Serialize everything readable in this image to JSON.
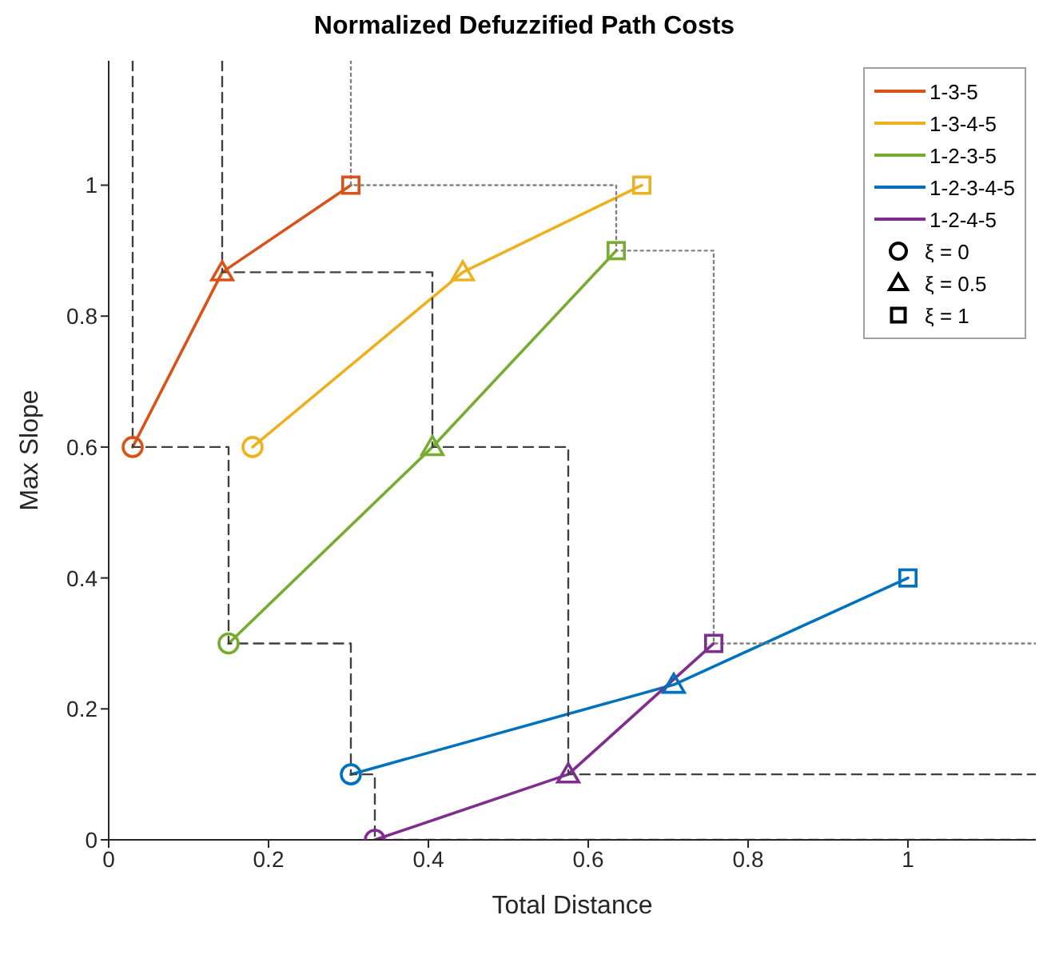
{
  "chart_data": {
    "type": "line",
    "title": "Normalized Defuzzified Path Costs",
    "xlabel": "Total Distance",
    "ylabel": "Max Slope",
    "xlim": [
      0,
      1.16
    ],
    "ylim": [
      0,
      1.19
    ],
    "xticks": [
      0,
      0.2,
      0.4,
      0.6,
      0.8,
      1
    ],
    "yticks": [
      0,
      0.2,
      0.4,
      0.6,
      0.8,
      1
    ],
    "grid": false,
    "legend": "top right",
    "marker": "none",
    "annotations": [
      "ξ = 0",
      "ξ = 0.5",
      "ξ = 1"
    ],
    "series": [
      {
        "name": "1-3-5",
        "type": "line",
        "color": "#d95319",
        "x": [
          0.03,
          0.142,
          0.303
        ],
        "values": [
          0.6,
          0.867,
          1.0
        ]
      },
      {
        "name": "1-3-4-5",
        "type": "line",
        "color": "#edb120",
        "x": [
          0.18,
          0.443,
          0.667
        ],
        "values": [
          0.6,
          0.867,
          1.0
        ]
      },
      {
        "name": "1-2-3-5",
        "type": "line",
        "color": "#77ac30",
        "x": [
          0.15,
          0.405,
          0.635
        ],
        "values": [
          0.3,
          0.6,
          0.9
        ]
      },
      {
        "name": "1-2-3-4-5",
        "type": "line",
        "color": "#0072bd",
        "x": [
          0.303,
          0.707,
          1.0
        ],
        "values": [
          0.1,
          0.237,
          0.4
        ]
      },
      {
        "name": "1-2-4-5",
        "type": "line",
        "color": "#7e2f8e",
        "x": [
          0.333,
          0.575,
          0.757
        ],
        "values": [
          0.0,
          0.1,
          0.3
        ]
      },
      {
        "type": "scatter",
        "marker": "circle",
        "x": [
          0.03,
          0.18,
          0.15,
          0.303,
          0.333
        ],
        "values": [
          0.6,
          0.6,
          0.3,
          0.1,
          0.0
        ],
        "colors": [
          "#d95319",
          "#edb120",
          "#77ac30",
          "#0072bd",
          "#7e2f8e"
        ]
      },
      {
        "type": "scatter",
        "marker": "triangle",
        "x": [
          0.142,
          0.443,
          0.405,
          0.707,
          0.575
        ],
        "values": [
          0.867,
          0.867,
          0.6,
          0.237,
          0.1
        ],
        "colors": [
          "#d95319",
          "#edb120",
          "#77ac30",
          "#0072bd",
          "#7e2f8e"
        ]
      },
      {
        "type": "scatter",
        "marker": "square",
        "x": [
          0.303,
          0.667,
          0.635,
          1.0,
          0.757
        ],
        "values": [
          1.0,
          1.0,
          0.9,
          0.4,
          0.3
        ],
        "colors": [
          "#d95319",
          "#edb120",
          "#77ac30",
          "#0072bd",
          "#7e2f8e"
        ]
      },
      {
        "type": "line",
        "color": "#404040",
        "line_style": "dashed",
        "x": [
          0.03,
          0.03,
          0.15,
          0.15,
          0.303,
          0.303,
          0.333,
          0.333,
          1.16
        ],
        "values": [
          1.19,
          0.6,
          0.6,
          0.3,
          0.3,
          0.1,
          0.1,
          0.0,
          0.0
        ]
      },
      {
        "type": "line",
        "color": "#404040",
        "line_style": "dashed",
        "x": [
          0.142,
          0.142,
          0.405,
          0.405,
          0.575,
          0.575,
          1.16
        ],
        "values": [
          1.19,
          0.867,
          0.867,
          0.6,
          0.6,
          0.1,
          0.1
        ]
      },
      {
        "type": "line",
        "color": "#808080",
        "line_style": "dotted",
        "x": [
          0.303,
          0.303,
          0.635,
          0.635,
          0.757,
          0.757,
          1.16
        ],
        "values": [
          1.19,
          1.0,
          1.0,
          0.9,
          0.9,
          0.3,
          0.3
        ]
      }
    ]
  }
}
